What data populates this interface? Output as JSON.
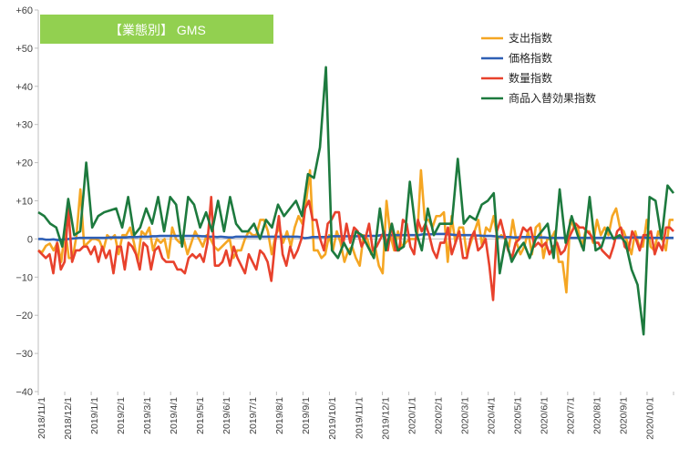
{
  "chart_data": {
    "type": "line",
    "title": "【業態別】 GMS",
    "title_bg_color": "#92d050",
    "title_text_color": "#ffffff",
    "xlabel": "",
    "ylabel": "",
    "ylim": [
      -40,
      60
    ],
    "yticks": [
      60,
      50,
      40,
      30,
      20,
      10,
      0,
      -10,
      -20,
      -30,
      -40
    ],
    "ytick_labels": [
      "+60",
      "+50",
      "+40",
      "+30",
      "+20",
      "+10",
      "0",
      "−10",
      "−20",
      "−30",
      "−40"
    ],
    "grid": false,
    "legend_position": "top-right",
    "x_tick_labels": [
      "2018/11/1",
      "2018/12/1",
      "2019/1/1",
      "2019/2/1",
      "2019/3/1",
      "2019/4/1",
      "2019/5/1",
      "2019/6/1",
      "2019/7/1",
      "2019/8/1",
      "2019/9/1",
      "2019/10/1",
      "2019/11/1",
      "2019/12/1",
      "2020/1/1",
      "2020/2/1",
      "2020/3/1",
      "2020/4/1",
      "2020/5/1",
      "2020/6/1",
      "2020/7/1",
      "2020/8/1",
      "2020/9/1",
      "2020/10/1"
    ],
    "series": [
      {
        "name": "支出指数",
        "color": "#f5a623",
        "values": [
          -3,
          -3.5,
          -1.8,
          -1.2,
          -3,
          -1,
          -6,
          2.5,
          -5,
          -5,
          1,
          13,
          -2,
          -1,
          0,
          0,
          -0.5,
          -3,
          1,
          0,
          1,
          -4,
          1,
          1,
          3,
          -1,
          -6,
          2,
          1,
          3,
          -3,
          0,
          -1,
          0,
          -5,
          3,
          0,
          -1,
          0,
          -4,
          -1,
          2,
          0,
          -2,
          1,
          0,
          -2,
          -3,
          -2,
          -1,
          0,
          -5,
          -3,
          -3,
          0,
          2,
          1,
          1,
          5,
          5,
          2,
          -4,
          1,
          3,
          -1,
          2,
          -2,
          3,
          6,
          4,
          10,
          18,
          -3,
          -3,
          -5,
          -4,
          1,
          -3,
          2,
          -1,
          -6,
          -3,
          -2,
          -5,
          -7,
          1,
          0,
          -4,
          -2,
          -7,
          -9,
          10,
          1,
          -3,
          2,
          -2,
          -1,
          0,
          0,
          0,
          18,
          5,
          5,
          3,
          6,
          6,
          7,
          -6,
          6,
          -1,
          3,
          3,
          -4,
          -1,
          2,
          5,
          -2,
          3,
          2,
          6,
          0,
          1,
          0,
          -2,
          5,
          -1,
          -4,
          -2,
          2,
          -4,
          3,
          4,
          -5,
          0,
          0,
          2,
          -6,
          -6,
          -14,
          5,
          3,
          3,
          -2,
          2,
          2,
          -1,
          5,
          1,
          3,
          1,
          6,
          8,
          3,
          2,
          -1,
          -4,
          2,
          -2,
          -2,
          5,
          -2,
          -3,
          2,
          0,
          -3,
          5,
          5
        ],
        "values_note": ""
      },
      {
        "name": "価格指数",
        "color": "#2e5fb5",
        "values": [
          0,
          0,
          -0.2,
          -0.2,
          -0.1,
          -0.3,
          -0.2,
          -0.1,
          0,
          0.1,
          0.2,
          0.3,
          0.3,
          0.3,
          0.3,
          0.3,
          0.3,
          0.3,
          0.3,
          0.4,
          0.4,
          0.4,
          0.4,
          0.4,
          0.5,
          0.5,
          0.5,
          0.6,
          0.6,
          0.6,
          0.7,
          0.7,
          0.8,
          0.8,
          0.8,
          0.8,
          0.8,
          0.8,
          0.8,
          0.8,
          0.8,
          0.8,
          0.8,
          0.7,
          0.7,
          0.6,
          0.6,
          0.5,
          0.6,
          0.5,
          0.4,
          0.4,
          0.6,
          0.6,
          0.6,
          0.6,
          0.6,
          0.6,
          0.6,
          0.6,
          0.6,
          0.6,
          0.6,
          0.6,
          0.6,
          0.6,
          0.6,
          0.6,
          0.6,
          0.5,
          0.2,
          0.3,
          0.5,
          0.5,
          0.5,
          0.5,
          0.5,
          0.7,
          0.7,
          0.7,
          0.7,
          0.7,
          0.7,
          0.7,
          0.7,
          0.7,
          0.8,
          0.8,
          0.8,
          0.8,
          1,
          1,
          1,
          1,
          1,
          1,
          1,
          1,
          1,
          1,
          1,
          1.2,
          1.2,
          1.2,
          1.3,
          1.3,
          1.3,
          1.3,
          1.2,
          1.1,
          1,
          1,
          1,
          1,
          1,
          0.9,
          0.9,
          0.8,
          0.8,
          0.8,
          0.7,
          0.6,
          0.5,
          0.5,
          0.5,
          0.4,
          0.4,
          0.5,
          0.5,
          0.5,
          0.5,
          0.5,
          0.4,
          0.4,
          0.3,
          0.3,
          0.3,
          0.3,
          0.3,
          0.3,
          0.3,
          0.3,
          0.3,
          0.3,
          0.3,
          0.3,
          0.3,
          0.3,
          0.3,
          0.3,
          0.3,
          0.3,
          0.3,
          0.3,
          0.4,
          0.4,
          0.4,
          0.4,
          0.4,
          0.4,
          0.3,
          0.3,
          0.3,
          0.3,
          0.3,
          0.3,
          0.3,
          0.3
        ]
      },
      {
        "name": "数量指数",
        "color": "#e8412c",
        "values": [
          -3,
          -4,
          -5,
          -4,
          -9,
          -1,
          -8,
          -6,
          8,
          -6,
          -3,
          -3,
          -2,
          -2,
          -4,
          -2,
          -6,
          -2,
          -5,
          -3,
          -9,
          -2,
          -2,
          -8,
          -1,
          -2,
          -4,
          -8,
          -1,
          -2,
          -8,
          -3,
          -2,
          -5,
          -6,
          -6,
          -6,
          -8,
          -8,
          -9,
          -5,
          -4,
          -5,
          -4,
          -6,
          -1,
          11,
          -7,
          -7,
          -6,
          -3,
          -7,
          -2,
          -5,
          -7,
          -9,
          -4,
          -6,
          -8,
          -3,
          -4,
          -6,
          -11,
          -1,
          6,
          -4,
          -7,
          -2,
          -5,
          -3,
          0,
          8,
          10,
          5,
          5,
          0,
          -3,
          4,
          5,
          7,
          7,
          -2,
          4,
          -1,
          3,
          2,
          -2,
          0,
          4,
          -3,
          -2,
          0,
          2,
          -3,
          4,
          -3,
          -3,
          5,
          4,
          -2,
          -4,
          5,
          2,
          4,
          1,
          -3,
          -5,
          -1,
          -1,
          3,
          -4,
          -1,
          2,
          -5,
          -5,
          0,
          2,
          -3,
          -2,
          0,
          -7,
          -16,
          2,
          5,
          1,
          -3,
          -5,
          -1,
          0,
          3,
          2,
          3,
          -2,
          -1,
          -2,
          -1,
          -4,
          -2,
          -1,
          -4,
          -3,
          0,
          2,
          4,
          3,
          3,
          2,
          1,
          -1,
          -1,
          -3,
          -4,
          -5,
          -2,
          2,
          3,
          -2,
          -3,
          2,
          0,
          -3,
          1,
          1,
          2,
          -4,
          -1,
          -3,
          3,
          3,
          2
        ],
        "values_note": ""
      },
      {
        "name": "商品入替効果指数",
        "color": "#1d7a3e",
        "values": [
          7,
          6,
          4,
          3,
          -2,
          10.5,
          1,
          2,
          20,
          3,
          6,
          7,
          7.5,
          8,
          3,
          11,
          1,
          3,
          8,
          4,
          11,
          2,
          11,
          9,
          -2,
          11,
          9,
          3,
          7,
          2,
          10,
          2,
          11,
          4,
          2,
          2,
          4,
          0,
          5,
          3,
          9,
          6,
          8,
          10,
          6,
          17,
          16,
          24,
          45,
          -3,
          -5,
          -1,
          -4,
          2,
          1,
          -2,
          -5,
          8,
          -3,
          4,
          -3,
          -2,
          15,
          2,
          -3,
          8,
          1,
          4,
          4,
          4,
          21,
          4,
          6,
          5,
          9,
          10,
          12,
          -9,
          0,
          -6,
          -3,
          -1,
          -5,
          0,
          2,
          4,
          -5,
          13,
          -1,
          6,
          1,
          -3,
          11,
          -3,
          -2,
          3,
          0,
          1,
          -1,
          -8,
          -12,
          -25,
          11,
          10,
          0,
          14,
          12
        ],
        "values_note": ""
      }
    ]
  }
}
